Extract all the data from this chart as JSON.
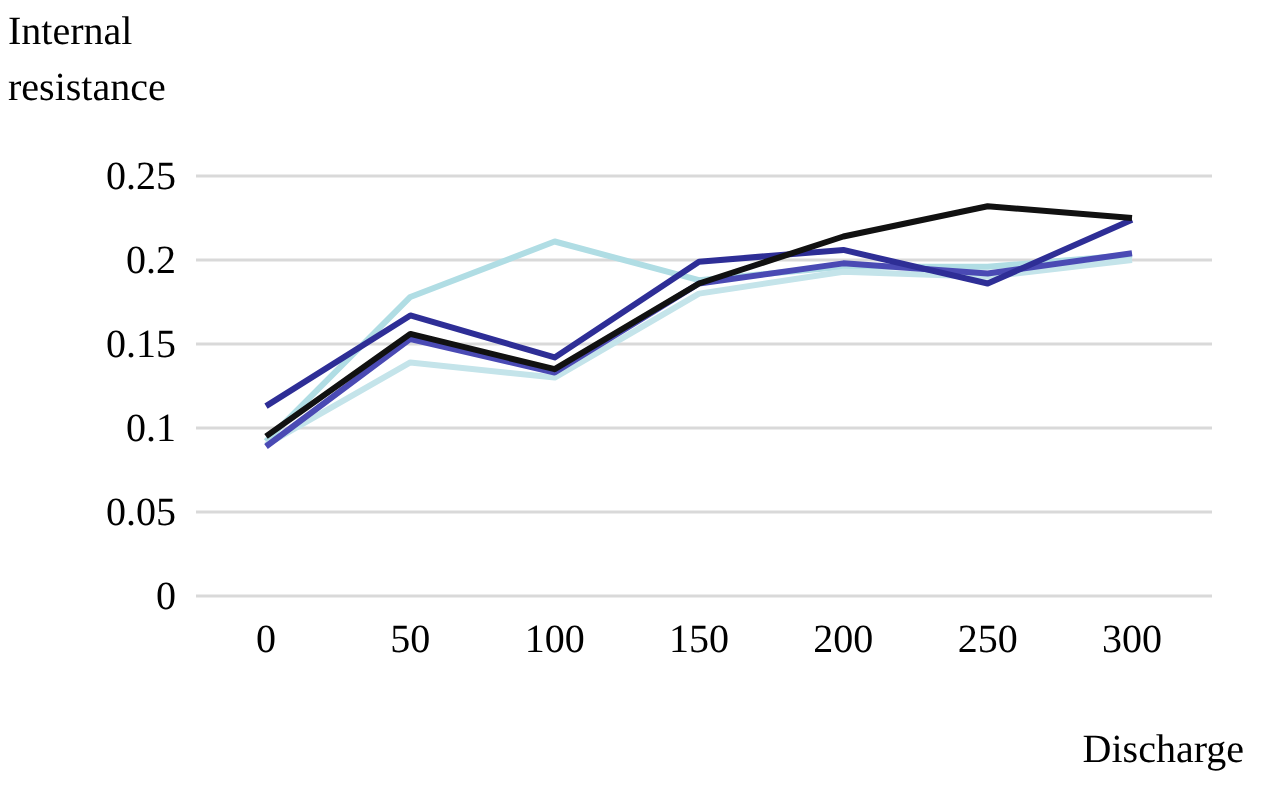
{
  "chart_data": {
    "type": "line",
    "ylabel": "Internal resistance",
    "xlabel": "Discharge",
    "categories": [
      "0",
      "50",
      "100",
      "150",
      "200",
      "250",
      "300"
    ],
    "series": [
      {
        "color": "#b0dde4",
        "values": [
          0.092,
          0.178,
          0.211,
          0.188,
          0.196,
          0.196,
          0.203
        ]
      },
      {
        "color": "#c4e4ea",
        "values": [
          0.09,
          0.139,
          0.13,
          0.18,
          0.193,
          0.19,
          0.2
        ]
      },
      {
        "color": "#4a4ab4",
        "values": [
          0.089,
          0.153,
          0.133,
          0.186,
          0.198,
          0.192,
          0.204
        ]
      },
      {
        "color": "#2e2e96",
        "values": [
          0.113,
          0.167,
          0.142,
          0.199,
          0.206,
          0.186,
          0.224
        ]
      },
      {
        "color": "#111111",
        "values": [
          0.095,
          0.156,
          0.135,
          0.186,
          0.214,
          0.232,
          0.225
        ]
      }
    ],
    "ylim": [
      0,
      0.25
    ],
    "yticks": [
      0,
      0.05,
      0.1,
      0.15,
      0.2,
      0.25
    ],
    "grid": "y",
    "marker": "none",
    "line_style": "solid"
  }
}
